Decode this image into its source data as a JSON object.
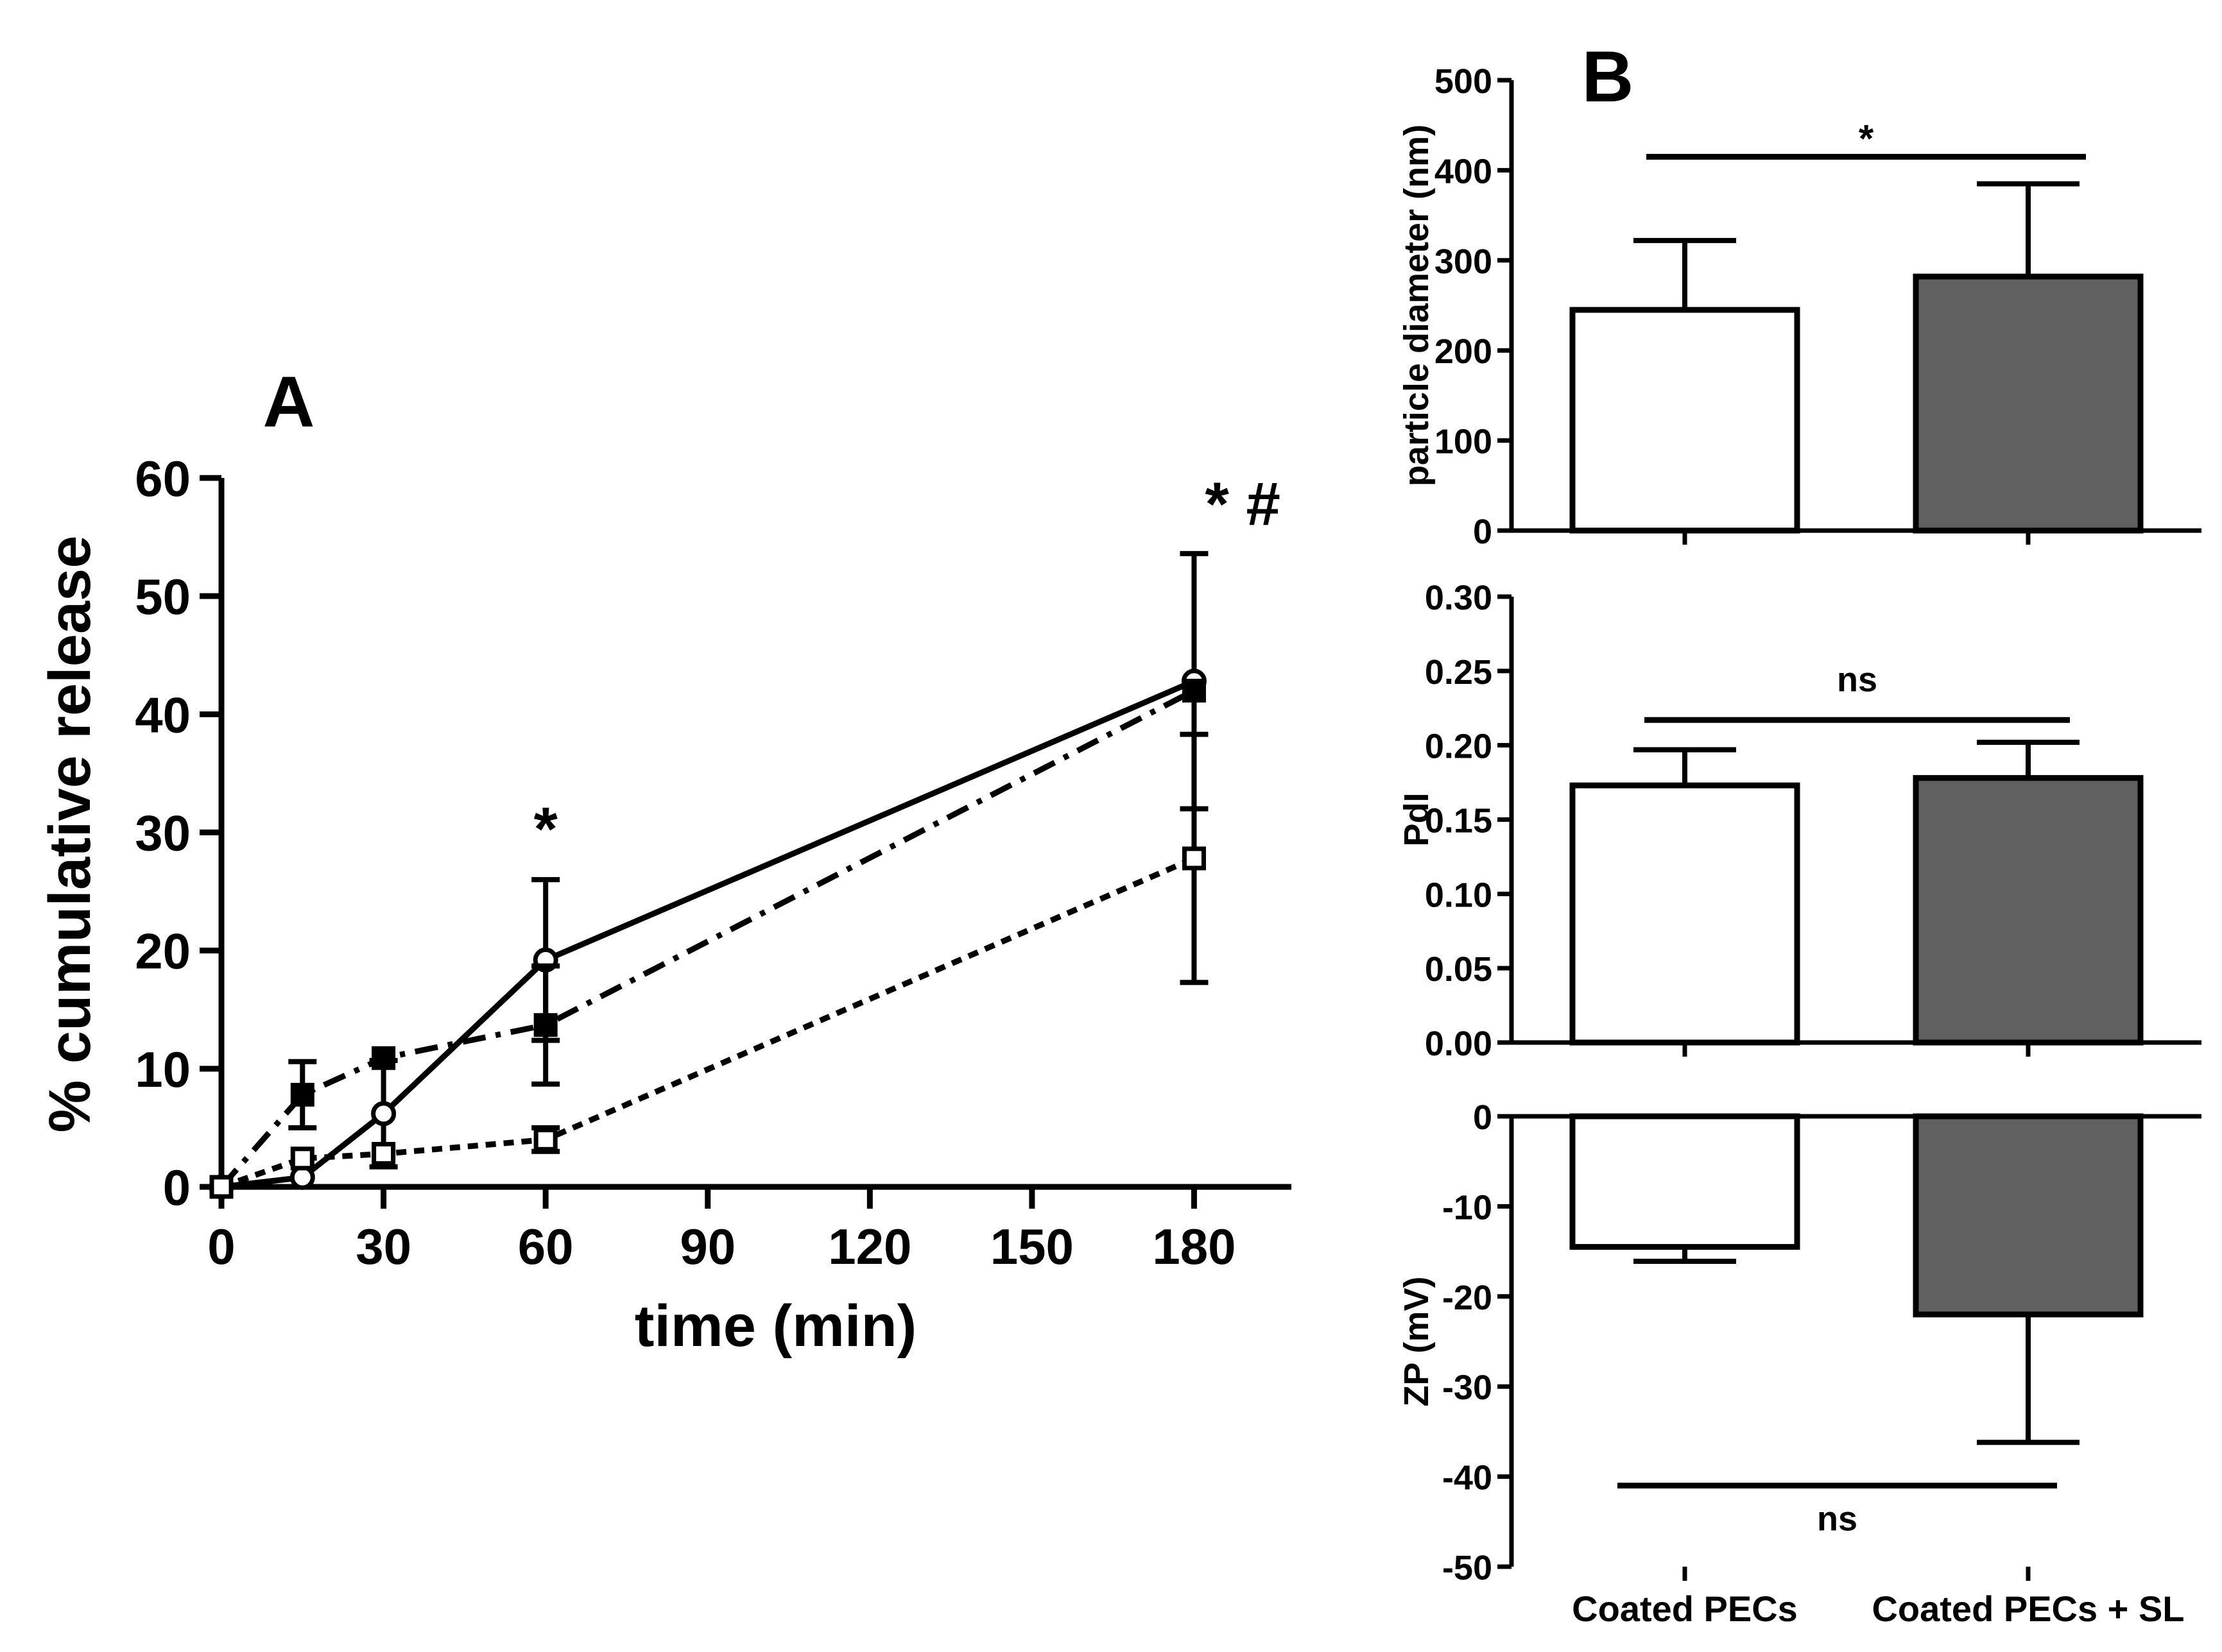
{
  "chart_data": [
    {
      "id": "A",
      "type": "line",
      "panel_label": "A",
      "xlabel": "time (min)",
      "ylabel": "% cumulative release",
      "xlim": [
        0,
        198
      ],
      "ylim": [
        0,
        60
      ],
      "x_ticks": [
        0,
        30,
        60,
        90,
        120,
        150,
        180
      ],
      "y_ticks": [
        0,
        10,
        20,
        30,
        40,
        50,
        60
      ],
      "legend": "none",
      "series": [
        {
          "name": "open-circle-solid",
          "marker": "open-circle",
          "line": "solid",
          "x": [
            0,
            15,
            30,
            60,
            180
          ],
          "y": [
            0,
            0.8,
            6.2,
            19.2,
            42.8
          ],
          "err": [
            0,
            0,
            4.5,
            6.8,
            10.8
          ]
        },
        {
          "name": "filled-square-dashdot",
          "marker": "filled-square",
          "line": "dashdot",
          "x": [
            0,
            15,
            30,
            60,
            180
          ],
          "y": [
            0,
            7.8,
            10.9,
            13.7,
            42.0
          ],
          "err": [
            0,
            2.8,
            0,
            5.0,
            0
          ]
        },
        {
          "name": "open-square-dotted",
          "marker": "open-square",
          "line": "dotted",
          "x": [
            0,
            15,
            30,
            60,
            180
          ],
          "y": [
            0,
            2.4,
            2.8,
            4.0,
            27.8
          ],
          "err": [
            0,
            0,
            0,
            1.0,
            10.5
          ]
        }
      ],
      "annotations": [
        {
          "text": "*",
          "x": 60,
          "y": 28.5
        },
        {
          "text": "* #",
          "x": 189,
          "y": 56
        }
      ]
    },
    {
      "id": "B1",
      "type": "bar",
      "panel_label": "B",
      "ylabel": "particle diameter (nm)",
      "categories": [
        "Coated PECs",
        "Coated PECs + SL"
      ],
      "values": [
        245,
        282
      ],
      "errors": [
        77,
        103
      ],
      "colors": [
        "#ffffff",
        "#606060"
      ],
      "ylim": [
        0,
        500
      ],
      "y_ticks": [
        0,
        100,
        200,
        300,
        400,
        500
      ],
      "significance": {
        "text": "*",
        "y": 415
      }
    },
    {
      "id": "B2",
      "type": "bar",
      "ylabel": "PdI",
      "categories": [
        "Coated PECs",
        "Coated PECs + SL"
      ],
      "values": [
        0.173,
        0.178
      ],
      "errors": [
        0.024,
        0.024
      ],
      "colors": [
        "#ffffff",
        "#606060"
      ],
      "ylim": [
        0,
        0.3
      ],
      "y_ticks": [
        "0.00",
        "0.05",
        "0.10",
        "0.15",
        "0.20",
        "0.25",
        "0.30"
      ],
      "significance": {
        "text": "ns",
        "y": 0.217
      }
    },
    {
      "id": "B3",
      "type": "bar",
      "ylabel": "ZP (mV)",
      "categories": [
        "Coated PECs",
        "Coated PECs + SL"
      ],
      "values": [
        -14.5,
        -22.0
      ],
      "errors": [
        1.6,
        14.2
      ],
      "colors": [
        "#ffffff",
        "#606060"
      ],
      "ylim": [
        -50,
        0
      ],
      "y_ticks": [
        0,
        -10,
        -20,
        -30,
        -40,
        -50
      ],
      "significance": {
        "text": "ns",
        "y": -41
      }
    }
  ]
}
